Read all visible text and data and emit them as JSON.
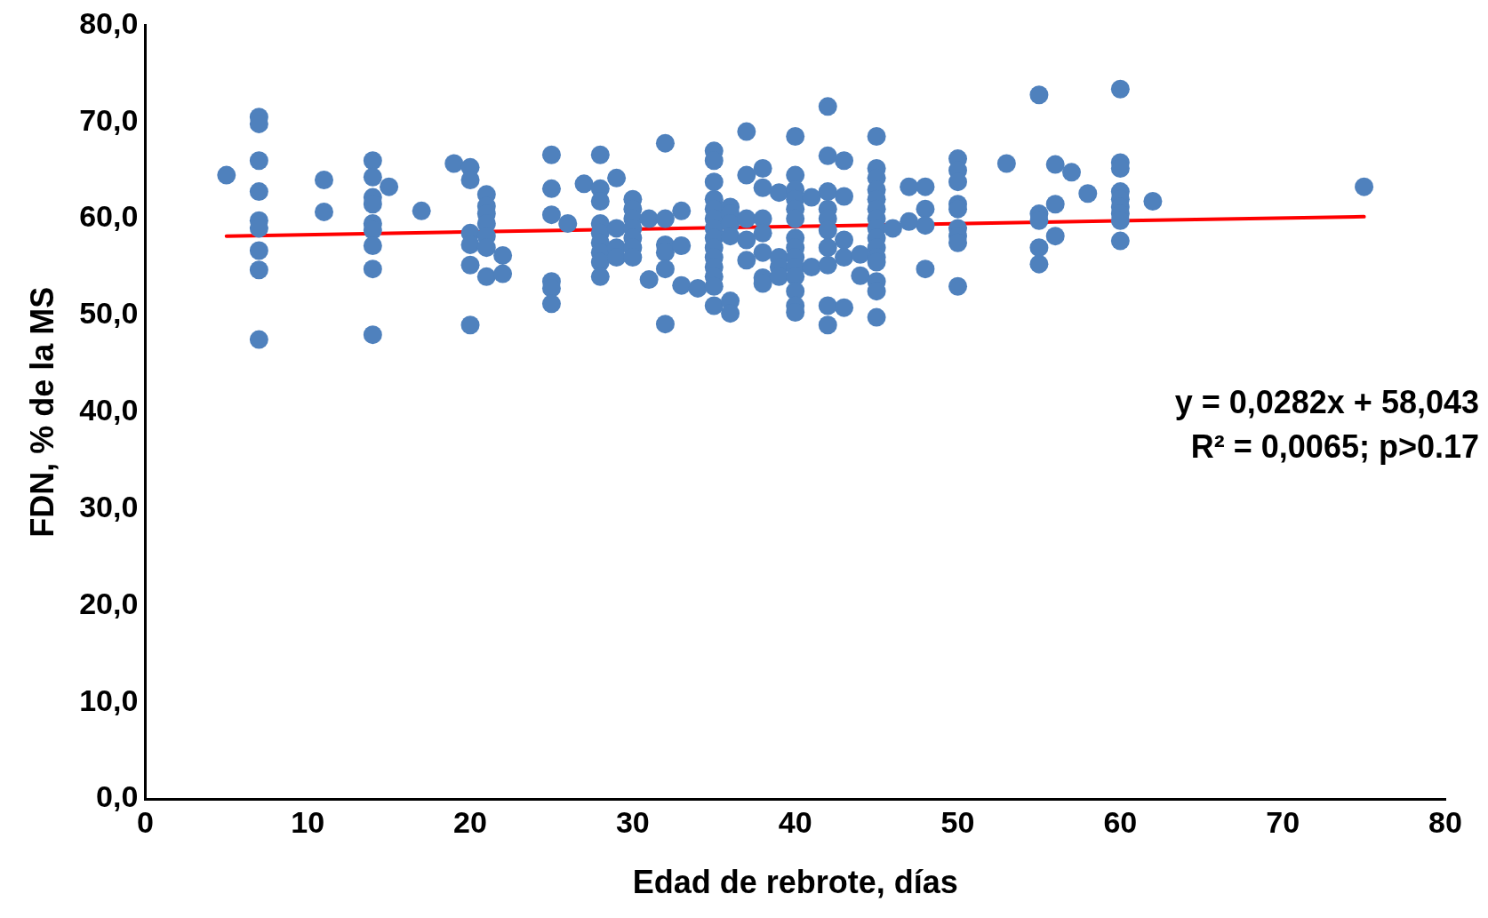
{
  "chart_data": {
    "type": "scatter",
    "xlabel": "Edad de rebrote, días",
    "ylabel": "FDN, % de la MS",
    "xlim": [
      0,
      80
    ],
    "xticks": [
      0,
      10,
      20,
      30,
      40,
      50,
      60,
      70,
      80
    ],
    "ylim": [
      0,
      80
    ],
    "yticks": [
      {
        "value": 0,
        "label": "0,0"
      },
      {
        "value": 10,
        "label": "10,0"
      },
      {
        "value": 20,
        "label": "20,0"
      },
      {
        "value": 30,
        "label": "30,0"
      },
      {
        "value": 40,
        "label": "40,0"
      },
      {
        "value": 50,
        "label": "50,0"
      },
      {
        "value": 60,
        "label": "60,0"
      },
      {
        "value": 70,
        "label": "70,0"
      },
      {
        "value": 80,
        "label": "80,0"
      }
    ],
    "grid": false,
    "legend": false,
    "marker": "circle",
    "annotations": [
      "y = 0,0282x + 58,043",
      "R² = 0,0065; p>0.17"
    ],
    "series": [
      {
        "color": "#4f81bd",
        "x": [
          5,
          7,
          7,
          7,
          7,
          7,
          7,
          7,
          7,
          7,
          11,
          11,
          14,
          14,
          14,
          14,
          14,
          14,
          14,
          14,
          14,
          15,
          17,
          19,
          20,
          20,
          20,
          20,
          20,
          20,
          21,
          21,
          21,
          21,
          21,
          21,
          21,
          22,
          22,
          25,
          25,
          25,
          25,
          25,
          25,
          26,
          27,
          28,
          28,
          28,
          28,
          28,
          28,
          28,
          28,
          28,
          29,
          29,
          29,
          29,
          30,
          30,
          30,
          30,
          30,
          30,
          30,
          31,
          31,
          32,
          32,
          32,
          32,
          32,
          32,
          33,
          33,
          33,
          34,
          35,
          35,
          35,
          35,
          35,
          35,
          35,
          35,
          35,
          35,
          35,
          35,
          35,
          35,
          36,
          36,
          36,
          36,
          36,
          36,
          37,
          37,
          37,
          37,
          37,
          38,
          38,
          38,
          38,
          38,
          38,
          38,
          39,
          39,
          39,
          39,
          40,
          40,
          40,
          40,
          40,
          40,
          40,
          40,
          40,
          40,
          40,
          40,
          40,
          40,
          41,
          41,
          42,
          42,
          42,
          42,
          42,
          42,
          42,
          42,
          42,
          42,
          43,
          43,
          43,
          43,
          43,
          44,
          44,
          45,
          45,
          45,
          45,
          45,
          45,
          45,
          45,
          45,
          45,
          45,
          45,
          45,
          45,
          45,
          46,
          47,
          47,
          48,
          48,
          48,
          48,
          50,
          50,
          50,
          50,
          50,
          50,
          50,
          50,
          50,
          53,
          55,
          55,
          55,
          55,
          55,
          56,
          56,
          56,
          57,
          58,
          60,
          60,
          60,
          60,
          60,
          60,
          60,
          60,
          60,
          62,
          75
        ],
        "values": [
          64.5,
          70.5,
          69.8,
          66.0,
          62.8,
          59.8,
          59.0,
          56.7,
          54.7,
          47.5,
          64.0,
          60.7,
          66.0,
          64.3,
          62.2,
          61.5,
          59.5,
          58.8,
          57.2,
          54.8,
          48.0,
          63.3,
          60.8,
          65.7,
          65.3,
          64.0,
          58.5,
          57.3,
          55.2,
          49.0,
          62.5,
          61.3,
          60.5,
          59.5,
          58.2,
          57.0,
          54.0,
          56.2,
          54.3,
          66.6,
          63.1,
          60.4,
          53.5,
          52.8,
          51.2,
          59.5,
          63.6,
          66.6,
          63.1,
          61.8,
          59.5,
          58.5,
          57.5,
          56.5,
          55.5,
          54.0,
          64.2,
          59.0,
          57.0,
          56.0,
          62.0,
          61.0,
          60.0,
          59.0,
          58.0,
          57.0,
          56.0,
          60.0,
          53.7,
          67.8,
          60.0,
          57.3,
          56.5,
          54.8,
          49.1,
          60.8,
          57.2,
          53.1,
          52.8,
          67.0,
          66.0,
          63.8,
          62.0,
          61.0,
          60.0,
          59.0,
          58.0,
          57.0,
          56.0,
          55.0,
          54.0,
          53.0,
          51.0,
          61.2,
          60.5,
          59.5,
          58.2,
          51.5,
          50.2,
          69.0,
          64.5,
          60.0,
          57.8,
          55.7,
          65.2,
          63.2,
          60.0,
          58.5,
          56.5,
          53.9,
          53.3,
          62.7,
          56.0,
          55.0,
          54.0,
          68.5,
          64.5,
          63.0,
          62.0,
          61.0,
          60.0,
          58.0,
          57.0,
          56.0,
          55.0,
          54.0,
          52.5,
          51.0,
          50.3,
          62.2,
          55.0,
          71.6,
          66.5,
          62.8,
          61.0,
          60.0,
          58.8,
          57.0,
          55.2,
          51.0,
          49.0,
          66.0,
          62.3,
          57.8,
          56.0,
          50.8,
          56.3,
          54.1,
          68.5,
          65.2,
          64.2,
          63.0,
          62.0,
          61.0,
          60.0,
          59.0,
          58.0,
          57.0,
          56.0,
          55.5,
          53.5,
          52.5,
          49.8,
          59.0,
          63.3,
          59.7,
          63.3,
          61.0,
          59.3,
          54.8,
          66.2,
          65.0,
          63.8,
          61.5,
          61.0,
          59.0,
          58.2,
          57.5,
          53.0,
          65.7,
          72.8,
          60.5,
          59.8,
          57.0,
          55.3,
          65.6,
          61.5,
          58.2,
          64.8,
          62.6,
          73.4,
          65.8,
          65.2,
          62.8,
          62.0,
          61.2,
          60.5,
          59.8,
          57.7,
          61.8,
          63.3
        ]
      },
      {
        "type": "line",
        "color": "#ff0000",
        "x": [
          5,
          75
        ],
        "values": [
          58.2,
          60.2
        ],
        "marker": "none",
        "line_style": "solid"
      }
    ]
  }
}
